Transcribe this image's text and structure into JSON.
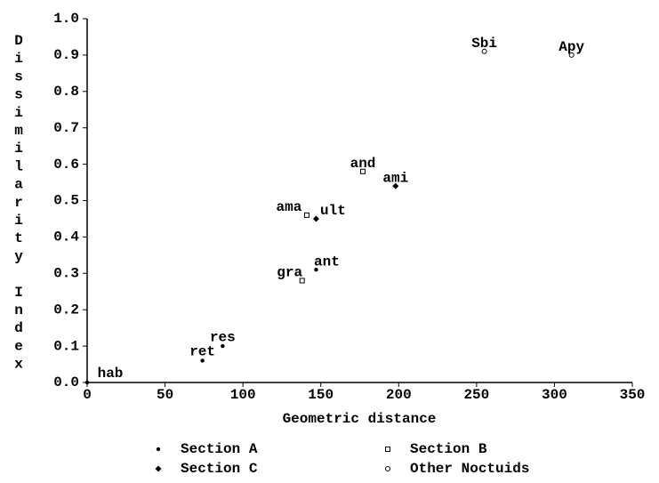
{
  "chart_data": {
    "type": "scatter",
    "xlabel": "Geometric distance",
    "ylabel": "Dissimilarity Index",
    "xlim": [
      0,
      350
    ],
    "xticks": [
      0,
      50,
      100,
      150,
      200,
      250,
      300,
      350
    ],
    "ylim": [
      0,
      1
    ],
    "yticks": [
      {
        "value": 0,
        "label": "0.0"
      },
      {
        "value": 0.1,
        "label": "0.1"
      },
      {
        "value": 0.2,
        "label": "0.2"
      },
      {
        "value": 0.3,
        "label": "0.3"
      },
      {
        "value": 0.4,
        "label": "0.4"
      },
      {
        "value": 0.5,
        "label": "0.5"
      },
      {
        "value": 0.6,
        "label": "0.6"
      },
      {
        "value": 0.7,
        "label": "0.7"
      },
      {
        "value": 0.8,
        "label": "0.8"
      },
      {
        "value": 0.9,
        "label": "0.9"
      },
      {
        "value": 1,
        "label": "1.0"
      }
    ],
    "grid": false,
    "series": [
      {
        "name": "Section A",
        "marker": "dot",
        "color": "#000000",
        "x": [
          0,
          74,
          87,
          147
        ],
        "values": [
          0,
          0.06,
          0.1,
          0.31
        ],
        "labels": [
          "hab",
          "ret",
          "res",
          "ant"
        ]
      },
      {
        "name": "Section B",
        "marker": "square",
        "color": "#000000",
        "x": [
          138,
          141,
          177
        ],
        "values": [
          0.28,
          0.46,
          0.58
        ],
        "labels": [
          "gra",
          "ama",
          "and"
        ]
      },
      {
        "name": "Section C",
        "marker": "diamond",
        "color": "#000000",
        "x": [
          147,
          198
        ],
        "values": [
          0.45,
          0.54
        ],
        "labels": [
          "ult",
          "ami"
        ]
      },
      {
        "name": "Other Noctuids",
        "marker": "circle",
        "color": "#000000",
        "x": [
          255,
          311
        ],
        "values": [
          0.91,
          0.9
        ],
        "labels": [
          "Sbi",
          "Apy"
        ]
      }
    ]
  }
}
